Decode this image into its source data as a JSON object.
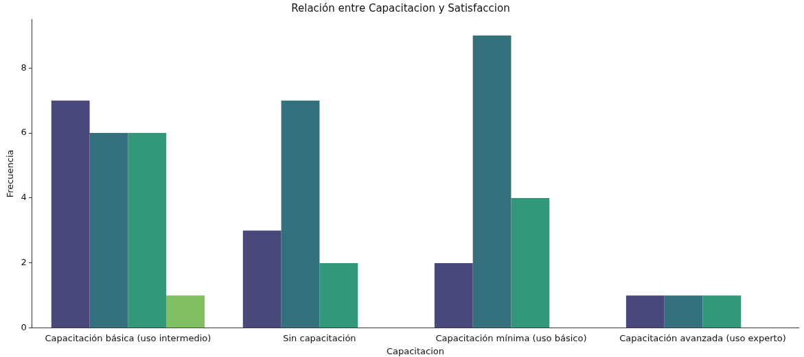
{
  "chart_data": {
    "type": "bar",
    "title": "Relación entre Capacitacion y Satisfaccion",
    "xlabel": "Capacitacion",
    "ylabel": "Frecuencia",
    "categories": [
      "Capacitación básica (uso intermedio)",
      "Sin capacitación",
      "Capacitación mínima (uso básico)",
      "Capacitación avanzada (uso experto)"
    ],
    "series": [
      {
        "color": "#48487a",
        "values": [
          7,
          3,
          2,
          1
        ]
      },
      {
        "color": "#35707e",
        "values": [
          6,
          7,
          9,
          1
        ]
      },
      {
        "color": "#33977a",
        "values": [
          6,
          2,
          4,
          1
        ]
      },
      {
        "color": "#80c060",
        "values": [
          1,
          null,
          null,
          null
        ]
      }
    ],
    "ylim": [
      0,
      9.5
    ],
    "yticks": [
      0,
      2,
      4,
      6,
      8
    ],
    "grid": false,
    "legend": false
  }
}
